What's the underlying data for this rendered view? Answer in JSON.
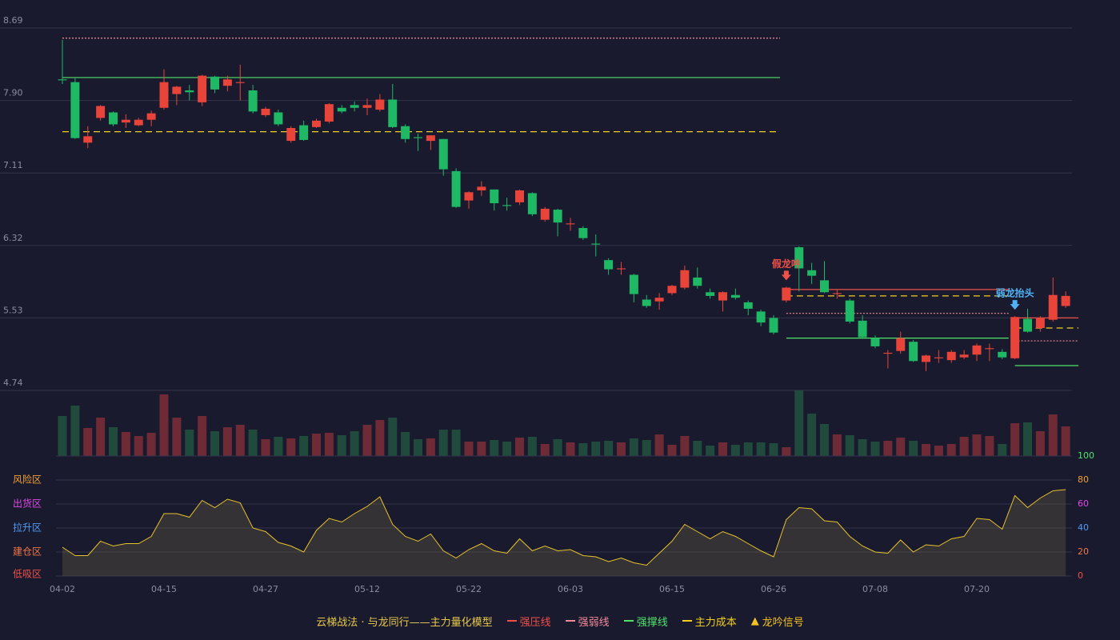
{
  "chart_data": [
    {
      "type": "candlestick",
      "ylim": [
        4.74,
        8.69
      ],
      "yticks": [
        8.69,
        {
          "value": 7.9,
          "label": "7.90"
        },
        7.11,
        6.32,
        5.53,
        4.74
      ],
      "up_color": "#e8443a",
      "down_color": "#1fb864",
      "open": [
        8.13,
        8.1,
        7.44,
        7.71,
        7.77,
        7.66,
        7.63,
        7.69,
        7.82,
        7.97,
        8.01,
        7.88,
        8.16,
        8.06,
        8.09,
        8.01,
        7.74,
        7.77,
        7.46,
        7.63,
        7.61,
        7.67,
        7.82,
        7.85,
        7.82,
        7.8,
        7.91,
        7.62,
        7.5,
        7.46,
        7.48,
        7.13,
        6.81,
        6.92,
        6.93,
        6.76,
        6.79,
        6.89,
        6.6,
        6.71,
        6.55,
        6.51,
        6.34,
        6.16,
        6.06,
        6.0,
        5.73,
        5.71,
        5.8,
        5.86,
        5.97,
        5.81,
        5.72,
        5.78,
        5.7,
        5.6,
        5.53,
        5.72,
        6.3,
        6.05,
        5.94,
        5.79,
        5.72,
        5.5,
        5.31,
        5.14,
        5.17,
        5.27,
        5.05,
        5.09,
        5.07,
        5.1,
        5.13,
        5.19,
        5.16,
        5.09,
        5.52,
        5.42,
        5.51,
        5.66
      ],
      "high": [
        8.56,
        8.14,
        7.62,
        7.85,
        7.78,
        7.75,
        7.71,
        7.79,
        8.24,
        8.06,
        8.07,
        8.18,
        8.17,
        8.17,
        8.29,
        8.07,
        7.83,
        7.8,
        7.62,
        7.68,
        7.7,
        7.87,
        7.85,
        7.89,
        7.92,
        7.97,
        8.08,
        7.64,
        7.54,
        7.52,
        7.48,
        7.16,
        6.91,
        7.02,
        6.93,
        6.84,
        6.93,
        6.9,
        6.74,
        6.72,
        6.62,
        6.53,
        6.44,
        6.18,
        6.14,
        6.01,
        5.78,
        5.8,
        5.89,
        6.1,
        6.08,
        5.85,
        5.82,
        5.85,
        5.72,
        5.62,
        5.56,
        5.87,
        6.31,
        6.13,
        6.15,
        5.84,
        5.74,
        5.56,
        5.34,
        5.18,
        5.38,
        5.29,
        5.13,
        5.18,
        5.18,
        5.18,
        5.25,
        5.25,
        5.19,
        5.55,
        5.63,
        5.55,
        5.97,
        5.82
      ],
      "low": [
        8.08,
        7.48,
        7.38,
        7.68,
        7.62,
        7.6,
        7.62,
        7.62,
        7.8,
        7.85,
        7.9,
        7.84,
        7.98,
        8.0,
        7.9,
        7.76,
        7.72,
        7.62,
        7.44,
        7.46,
        7.6,
        7.65,
        7.76,
        7.78,
        7.74,
        7.78,
        7.6,
        7.44,
        7.35,
        7.36,
        7.08,
        6.73,
        6.72,
        6.86,
        6.7,
        6.7,
        6.76,
        6.64,
        6.58,
        6.42,
        6.48,
        6.38,
        6.2,
        6.0,
        6.0,
        5.7,
        5.64,
        5.62,
        5.78,
        5.84,
        5.85,
        5.74,
        5.6,
        5.73,
        5.56,
        5.44,
        5.35,
        5.7,
        5.82,
        5.9,
        5.8,
        5.74,
        5.47,
        5.3,
        5.2,
        4.98,
        5.14,
        5.05,
        4.95,
        5.04,
        5.04,
        5.08,
        5.06,
        5.06,
        5.08,
        5.08,
        5.37,
        5.38,
        5.49,
        5.64
      ],
      "close": [
        8.12,
        7.49,
        7.51,
        7.84,
        7.64,
        7.69,
        7.69,
        7.76,
        8.1,
        8.05,
        7.99,
        8.17,
        8.02,
        8.13,
        8.1,
        7.78,
        7.81,
        7.64,
        7.6,
        7.47,
        7.68,
        7.86,
        7.78,
        7.82,
        7.85,
        7.91,
        7.61,
        7.48,
        7.49,
        7.52,
        7.15,
        6.74,
        6.9,
        6.96,
        6.78,
        6.75,
        6.92,
        6.66,
        6.72,
        6.57,
        6.56,
        6.4,
        6.33,
        6.06,
        6.07,
        5.79,
        5.66,
        5.75,
        5.88,
        6.05,
        5.88,
        5.77,
        5.81,
        5.75,
        5.63,
        5.48,
        5.37,
        5.86,
        6.07,
        5.99,
        5.81,
        5.8,
        5.49,
        5.32,
        5.22,
        5.15,
        5.31,
        5.06,
        5.12,
        5.1,
        5.16,
        5.13,
        5.23,
        5.2,
        5.1,
        5.54,
        5.38,
        5.53,
        5.78,
        5.77
      ],
      "levels": [
        {
          "name": "强压线",
          "color": "#f0504a",
          "dash": "none",
          "segments": [
            {
              "from": 57,
              "to": 74,
              "value": 5.84
            },
            {
              "from": 75,
              "to": 79.5,
              "value": 5.53
            }
          ]
        },
        {
          "name": "强弱线",
          "color": "#f48a9a",
          "dash": "2,2",
          "segments": [
            {
              "from": 0,
              "to": 56,
              "value": 8.58
            },
            {
              "from": 57,
              "to": 74,
              "value": 5.58
            },
            {
              "from": 75,
              "to": 79.5,
              "value": 5.28
            }
          ]
        },
        {
          "name": "强撑线",
          "color": "#4fe36a",
          "dash": "none",
          "segments": [
            {
              "from": 0,
              "to": 56,
              "value": 8.15
            },
            {
              "from": 57,
              "to": 74,
              "value": 5.31
            },
            {
              "from": 75,
              "to": 79.5,
              "value": 5.01
            }
          ]
        },
        {
          "name": "主力成本",
          "color": "#f2cf1e",
          "dash": "8,5",
          "segments": [
            {
              "from": 0,
              "to": 56,
              "value": 7.56
            },
            {
              "from": 57,
              "to": 74,
              "value": 5.77
            },
            {
              "from": 75,
              "to": 79.5,
              "value": 5.42
            }
          ]
        }
      ],
      "signals": [
        {
          "text": "假龙吟",
          "index": 57,
          "color": "#f0504a"
        },
        {
          "text": "弱龙抬头",
          "index": 75,
          "color": "#4fb3f5"
        }
      ]
    },
    {
      "type": "bar",
      "up_color": "#6e2b35",
      "down_color": "#1f4a3c",
      "values": [
        50,
        63,
        35,
        48,
        36,
        30,
        25,
        29,
        77,
        48,
        33,
        50,
        31,
        36,
        39,
        33,
        21,
        24,
        22,
        25,
        28,
        29,
        26,
        31,
        39,
        45,
        48,
        30,
        21,
        22,
        33,
        33,
        18,
        18,
        20,
        18,
        23,
        24,
        15,
        21,
        17,
        16,
        18,
        19,
        17,
        22,
        20,
        27,
        14,
        25,
        19,
        13,
        17,
        14,
        17,
        17,
        16,
        11,
        82,
        53,
        40,
        27,
        26,
        21,
        18,
        19,
        23,
        19,
        15,
        13,
        15,
        24,
        27,
        25,
        15,
        41,
        42,
        31,
        52,
        37
      ]
    },
    {
      "type": "line",
      "color": "#e6c22a",
      "ylim": [
        0,
        100
      ],
      "yticks": [
        0,
        20,
        40,
        60,
        80,
        100
      ],
      "ytick_colors": [
        "#f0504a",
        "#f07848",
        "#4f9cf5",
        "#e04ae6",
        "#f0a030",
        "#4fe36a"
      ],
      "zones": [
        {
          "label": "风险区",
          "value": 80,
          "color": "#f0a030"
        },
        {
          "label": "出货区",
          "value": 60,
          "color": "#e04ae6"
        },
        {
          "label": "拉升区",
          "value": 40,
          "color": "#4f9cf5"
        },
        {
          "label": "建仓区",
          "value": 20,
          "color": "#f07848"
        },
        {
          "label": "低吸区",
          "value": 0,
          "color": "#f0504a"
        }
      ],
      "categories": [
        "04-02",
        null,
        null,
        null,
        null,
        null,
        null,
        null,
        "04-15",
        null,
        null,
        null,
        null,
        null,
        null,
        null,
        "04-27",
        null,
        null,
        null,
        null,
        null,
        null,
        null,
        "05-12",
        null,
        null,
        null,
        null,
        null,
        null,
        null,
        "05-22",
        null,
        null,
        null,
        null,
        null,
        null,
        null,
        "06-03",
        null,
        null,
        null,
        null,
        null,
        null,
        null,
        "06-15",
        null,
        null,
        null,
        null,
        null,
        null,
        null,
        "06-26",
        null,
        null,
        null,
        null,
        null,
        null,
        null,
        "07-08",
        null,
        null,
        null,
        null,
        null,
        null,
        null,
        "07-20",
        null,
        null,
        null,
        null,
        null,
        null,
        null
      ],
      "values": [
        24,
        17,
        17,
        29,
        25,
        27,
        27,
        33,
        52,
        52,
        49,
        63,
        57,
        64,
        61,
        40,
        37,
        28,
        25,
        20,
        38,
        48,
        45,
        52,
        58,
        66,
        43,
        33,
        29,
        35,
        21,
        15,
        22,
        27,
        21,
        19,
        31,
        21,
        25,
        21,
        22,
        17,
        16,
        12,
        15,
        11,
        9,
        19,
        29,
        43,
        37,
        31,
        37,
        33,
        27,
        21,
        16,
        47,
        57,
        56,
        46,
        45,
        33,
        25,
        20,
        19,
        30,
        20,
        26,
        25,
        31,
        33,
        48,
        47,
        39,
        67,
        57,
        65,
        71,
        72
      ]
    }
  ],
  "legend": {
    "title": "云梯战法 · 与龙同行——主力量化模型",
    "signal": "龙吟信号"
  }
}
